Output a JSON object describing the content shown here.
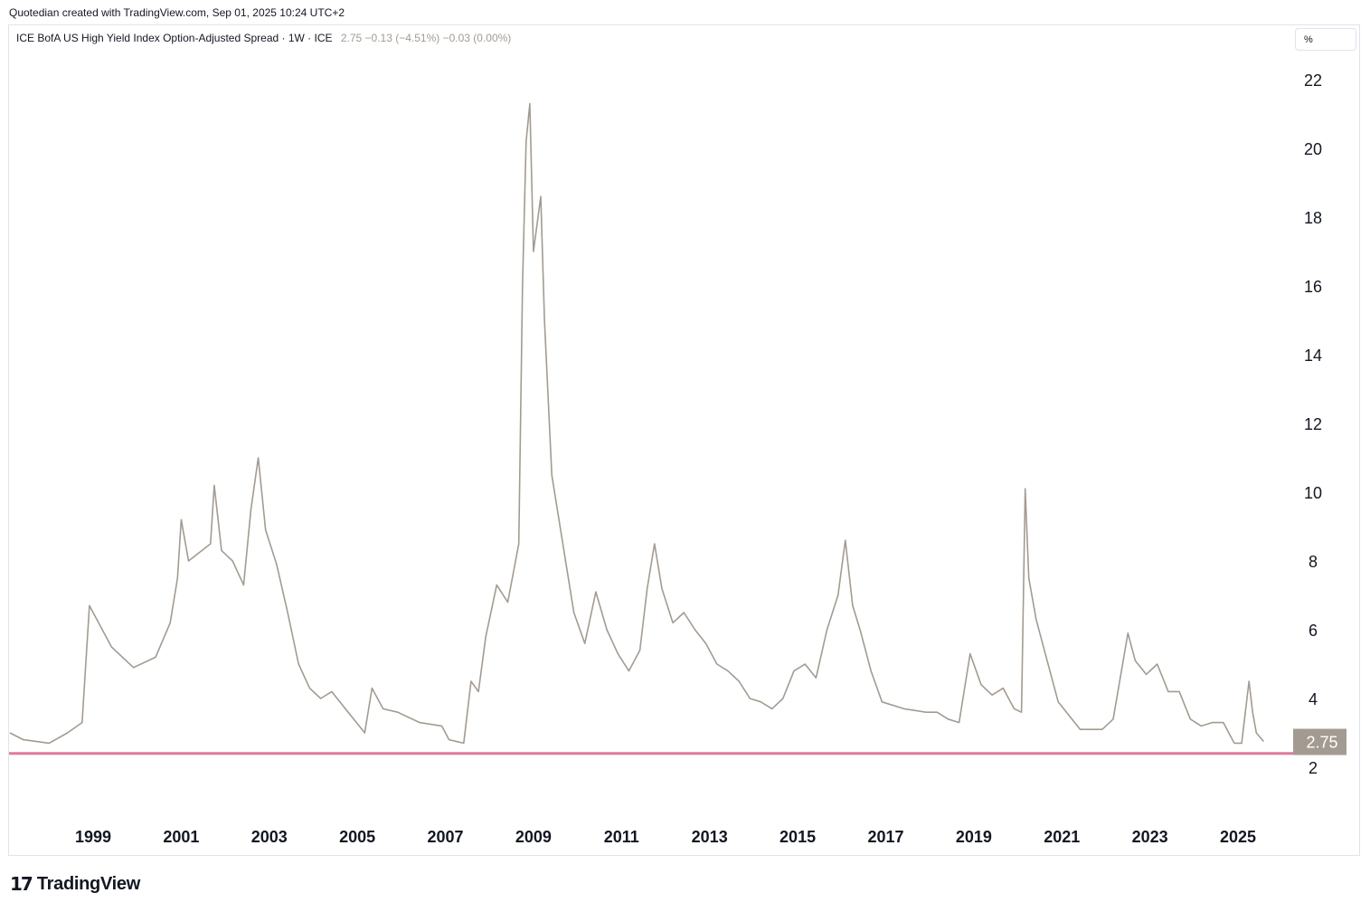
{
  "caption": "Quotedian created with TradingView.com, Sep 01, 2025 10:24 UTC+2",
  "legend": {
    "symbol": "ICE BofA US High Yield Index Option-Adjusted Spread · 1W · ICE",
    "values": "2.75  −0.13 (−4.51%)  −0.03 (0.00%)"
  },
  "unit_button": "%",
  "brand": {
    "mark": "17",
    "name": "TradingView"
  },
  "colors": {
    "line": "#a39b91",
    "hline": "#e07a9f",
    "label_bg": "#a39b91",
    "label_text": "#ffffff"
  },
  "chart_data": {
    "type": "line",
    "series": [
      {
        "x": [
          "1997-01",
          "1997-06",
          "1998-01",
          "1998-06",
          "1998-10",
          "1998-12",
          "1999-06",
          "1999-12",
          "2000-06",
          "2000-10",
          "2000-12",
          "2001-01",
          "2001-03",
          "2001-09",
          "2001-10",
          "2001-12",
          "2002-03",
          "2002-06",
          "2002-08",
          "2002-10",
          "2002-12",
          "2003-03",
          "2003-06",
          "2003-09",
          "2003-12",
          "2004-03",
          "2004-06",
          "2004-12",
          "2005-03",
          "2005-05",
          "2005-08",
          "2005-12",
          "2006-06",
          "2006-12",
          "2007-02",
          "2007-06",
          "2007-08",
          "2007-10",
          "2007-12",
          "2008-03",
          "2008-06",
          "2008-09",
          "2008-10",
          "2008-11",
          "2008-12",
          "2009-01",
          "2009-03",
          "2009-04",
          "2009-06",
          "2009-09",
          "2009-12",
          "2010-03",
          "2010-06",
          "2010-09",
          "2010-12",
          "2011-03",
          "2011-06",
          "2011-08",
          "2011-10",
          "2011-12",
          "2012-03",
          "2012-06",
          "2012-09",
          "2012-12",
          "2013-03",
          "2013-06",
          "2013-09",
          "2013-12",
          "2014-03",
          "2014-06",
          "2014-09",
          "2014-12",
          "2015-03",
          "2015-06",
          "2015-09",
          "2015-12",
          "2016-02",
          "2016-04",
          "2016-06",
          "2016-09",
          "2016-12",
          "2017-06",
          "2017-12",
          "2018-03",
          "2018-06",
          "2018-09",
          "2018-12",
          "2019-03",
          "2019-06",
          "2019-09",
          "2019-12",
          "2020-02",
          "2020-03",
          "2020-04",
          "2020-06",
          "2020-09",
          "2020-12",
          "2021-06",
          "2021-12",
          "2022-03",
          "2022-07",
          "2022-09",
          "2022-12",
          "2023-03",
          "2023-06",
          "2023-09",
          "2023-12",
          "2024-03",
          "2024-06",
          "2024-09",
          "2024-12",
          "2025-02",
          "2025-04",
          "2025-05",
          "2025-06",
          "2025-08"
        ],
        "y": [
          3.0,
          2.8,
          2.7,
          3.0,
          3.3,
          6.7,
          5.5,
          4.9,
          5.2,
          6.2,
          7.5,
          9.2,
          8.0,
          8.5,
          10.2,
          8.3,
          8.0,
          7.3,
          9.5,
          11.0,
          8.9,
          7.9,
          6.5,
          5.0,
          4.3,
          4.0,
          4.2,
          3.4,
          3.0,
          4.3,
          3.7,
          3.6,
          3.3,
          3.2,
          2.8,
          2.7,
          4.5,
          4.2,
          5.8,
          7.3,
          6.8,
          8.5,
          16.0,
          20.2,
          21.3,
          17.0,
          18.6,
          15.0,
          10.5,
          8.5,
          6.5,
          5.6,
          7.1,
          6.0,
          5.3,
          4.8,
          5.4,
          7.2,
          8.5,
          7.2,
          6.2,
          6.5,
          6.0,
          5.6,
          5.0,
          4.8,
          4.5,
          4.0,
          3.9,
          3.7,
          4.0,
          4.8,
          5.0,
          4.6,
          6.0,
          7.0,
          8.6,
          6.7,
          6.0,
          4.8,
          3.9,
          3.7,
          3.6,
          3.6,
          3.4,
          3.3,
          5.3,
          4.4,
          4.1,
          4.3,
          3.7,
          3.6,
          10.1,
          7.5,
          6.3,
          5.1,
          3.9,
          3.1,
          3.1,
          3.4,
          5.9,
          5.1,
          4.7,
          5.0,
          4.2,
          4.2,
          3.4,
          3.2,
          3.3,
          3.3,
          2.7,
          2.7,
          4.5,
          3.6,
          3.0,
          2.75
        ]
      }
    ],
    "y_ticks": [
      "22",
      "20",
      "18",
      "16",
      "14",
      "12",
      "10",
      "8",
      "6",
      "4",
      "2"
    ],
    "x_ticks": [
      "1999",
      "2001",
      "2003",
      "2005",
      "2007",
      "2009",
      "2011",
      "2013",
      "2015",
      "2017",
      "2019",
      "2021",
      "2023",
      "2025"
    ],
    "ylim": [
      2,
      22
    ],
    "last_value_label": "2.75",
    "horizontal_line": 2.4,
    "grid": false,
    "xlabel": "",
    "ylabel": ""
  }
}
